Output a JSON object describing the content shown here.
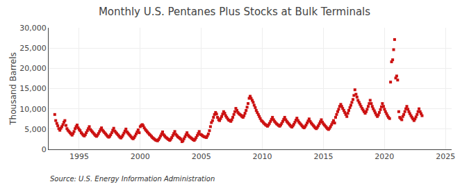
{
  "chart_data": {
    "type": "scatter",
    "title": "Monthly U.S. Pentanes Plus Stocks at Bulk Terminals",
    "ylabel": "Thousand Barrels",
    "annotations": [
      "Source: U.S. Energy Information Administration"
    ],
    "color": "#CC1111",
    "marker": "square",
    "grid": true,
    "xlim": [
      1992.5,
      2025.5
    ],
    "xticks": [
      1995,
      2000,
      2005,
      2010,
      2015,
      2020,
      2025
    ],
    "ylim": [
      0,
      30000
    ],
    "yticks": [
      0,
      {
        "value": 5000,
        "label": "5,000"
      },
      {
        "value": 10000,
        "label": "10,000"
      },
      {
        "value": 15000,
        "label": "15,000"
      },
      {
        "value": 20000,
        "label": "20,000"
      },
      {
        "value": 25000,
        "label": "25,000"
      },
      {
        "value": 30000,
        "label": "30,000"
      }
    ],
    "x": [
      1993.0,
      1993.08,
      1993.17,
      1993.25,
      1993.33,
      1993.42,
      1993.5,
      1993.58,
      1993.67,
      1993.75,
      1993.83,
      1993.92,
      1994.0,
      1994.08,
      1994.17,
      1994.25,
      1994.33,
      1994.42,
      1994.5,
      1994.58,
      1994.67,
      1994.75,
      1994.83,
      1994.92,
      1995.0,
      1995.08,
      1995.17,
      1995.25,
      1995.33,
      1995.42,
      1995.5,
      1995.58,
      1995.67,
      1995.75,
      1995.83,
      1995.92,
      1996.0,
      1996.08,
      1996.17,
      1996.25,
      1996.33,
      1996.42,
      1996.5,
      1996.58,
      1996.67,
      1996.75,
      1996.83,
      1996.92,
      1997.0,
      1997.08,
      1997.17,
      1997.25,
      1997.33,
      1997.42,
      1997.5,
      1997.58,
      1997.67,
      1997.75,
      1997.83,
      1997.92,
      1998.0,
      1998.08,
      1998.17,
      1998.25,
      1998.33,
      1998.42,
      1998.5,
      1998.58,
      1998.67,
      1998.75,
      1998.83,
      1998.92,
      1999.0,
      1999.08,
      1999.17,
      1999.25,
      1999.33,
      1999.42,
      1999.5,
      1999.58,
      1999.67,
      1999.75,
      1999.83,
      1999.92,
      2000.0,
      2000.08,
      2000.17,
      2000.25,
      2000.33,
      2000.42,
      2000.5,
      2000.58,
      2000.67,
      2000.75,
      2000.83,
      2000.92,
      2001.0,
      2001.08,
      2001.17,
      2001.25,
      2001.33,
      2001.42,
      2001.5,
      2001.58,
      2001.67,
      2001.75,
      2001.83,
      2001.92,
      2002.0,
      2002.08,
      2002.17,
      2002.25,
      2002.33,
      2002.42,
      2002.5,
      2002.58,
      2002.67,
      2002.75,
      2002.83,
      2002.92,
      2003.0,
      2003.08,
      2003.17,
      2003.25,
      2003.33,
      2003.42,
      2003.5,
      2003.58,
      2003.67,
      2003.75,
      2003.83,
      2003.92,
      2004.0,
      2004.08,
      2004.17,
      2004.25,
      2004.33,
      2004.42,
      2004.5,
      2004.58,
      2004.67,
      2004.75,
      2004.83,
      2004.92,
      2005.0,
      2005.08,
      2005.17,
      2005.25,
      2005.33,
      2005.42,
      2005.5,
      2005.58,
      2005.67,
      2005.75,
      2005.83,
      2005.92,
      2006.0,
      2006.08,
      2006.17,
      2006.25,
      2006.33,
      2006.42,
      2006.5,
      2006.58,
      2006.67,
      2006.75,
      2006.83,
      2006.92,
      2007.0,
      2007.08,
      2007.17,
      2007.25,
      2007.33,
      2007.42,
      2007.5,
      2007.58,
      2007.67,
      2007.75,
      2007.83,
      2007.92,
      2008.0,
      2008.08,
      2008.17,
      2008.25,
      2008.33,
      2008.42,
      2008.5,
      2008.58,
      2008.67,
      2008.75,
      2008.83,
      2008.92,
      2009.0,
      2009.08,
      2009.17,
      2009.25,
      2009.33,
      2009.42,
      2009.5,
      2009.58,
      2009.67,
      2009.75,
      2009.83,
      2009.92,
      2010.0,
      2010.08,
      2010.17,
      2010.25,
      2010.33,
      2010.42,
      2010.5,
      2010.58,
      2010.67,
      2010.75,
      2010.83,
      2010.92,
      2011.0,
      2011.08,
      2011.17,
      2011.25,
      2011.33,
      2011.42,
      2011.5,
      2011.58,
      2011.67,
      2011.75,
      2011.83,
      2011.92,
      2012.0,
      2012.08,
      2012.17,
      2012.25,
      2012.33,
      2012.42,
      2012.5,
      2012.58,
      2012.67,
      2012.75,
      2012.83,
      2012.92,
      2013.0,
      2013.08,
      2013.17,
      2013.25,
      2013.33,
      2013.42,
      2013.5,
      2013.58,
      2013.67,
      2013.75,
      2013.83,
      2013.92,
      2014.0,
      2014.08,
      2014.17,
      2014.25,
      2014.33,
      2014.42,
      2014.5,
      2014.58,
      2014.67,
      2014.75,
      2014.83,
      2014.92,
      2015.0,
      2015.08,
      2015.17,
      2015.25,
      2015.33,
      2015.42,
      2015.5,
      2015.58,
      2015.67,
      2015.75,
      2015.83,
      2015.92,
      2016.0,
      2016.08,
      2016.17,
      2016.25,
      2016.33,
      2016.42,
      2016.5,
      2016.58,
      2016.67,
      2016.75,
      2016.83,
      2016.92,
      2017.0,
      2017.08,
      2017.17,
      2017.25,
      2017.33,
      2017.42,
      2017.5,
      2017.58,
      2017.67,
      2017.75,
      2017.83,
      2017.92,
      2018.0,
      2018.08,
      2018.17,
      2018.25,
      2018.33,
      2018.42,
      2018.5,
      2018.58,
      2018.67,
      2018.75,
      2018.83,
      2018.92,
      2019.0,
      2019.08,
      2019.17,
      2019.25,
      2019.33,
      2019.42,
      2019.5,
      2019.58,
      2019.67,
      2019.75,
      2019.83,
      2019.92,
      2020.0,
      2020.08,
      2020.17,
      2020.25,
      2020.33,
      2020.42,
      2020.5,
      2020.58,
      2020.67,
      2020.75,
      2020.83,
      2020.92,
      2021.0,
      2021.08,
      2021.17,
      2021.25,
      2021.33,
      2021.42,
      2021.5,
      2021.58,
      2021.67,
      2021.75,
      2021.83,
      2021.92,
      2022.0,
      2022.08,
      2022.17,
      2022.25,
      2022.33,
      2022.42,
      2022.5,
      2022.58,
      2022.67,
      2022.75,
      2022.83,
      2022.92,
      2023.0,
      2023.08
    ],
    "values": [
      8600,
      7100,
      6400,
      5800,
      5100,
      4700,
      5200,
      5600,
      6100,
      6700,
      7100,
      5900,
      5100,
      4700,
      4400,
      4100,
      3800,
      3500,
      3900,
      4400,
      5100,
      5600,
      6000,
      5300,
      4900,
      4600,
      4100,
      3800,
      3500,
      3300,
      3600,
      4100,
      4600,
      5100,
      5600,
      4900,
      4600,
      4300,
      4000,
      3700,
      3400,
      3200,
      3500,
      3900,
      4400,
      4900,
      5300,
      4700,
      4400,
      4100,
      3800,
      3500,
      3200,
      3000,
      3200,
      3600,
      4100,
      4700,
      5200,
      4500,
      4200,
      3900,
      3600,
      3300,
      3000,
      2800,
      3100,
      3500,
      4000,
      4500,
      5000,
      4300,
      4000,
      3700,
      3400,
      3100,
      2800,
      2600,
      2900,
      3300,
      3800,
      4300,
      4800,
      4100,
      5600,
      5900,
      6100,
      5800,
      5300,
      4900,
      4600,
      4300,
      4000,
      3700,
      3500,
      3200,
      2900,
      2700,
      2500,
      2300,
      2200,
      2100,
      2400,
      2800,
      3300,
      3800,
      4300,
      3600,
      3300,
      3000,
      2800,
      2600,
      2400,
      2200,
      2500,
      2900,
      3400,
      3900,
      4400,
      3700,
      3400,
      3100,
      2900,
      2700,
      2500,
      1900,
      2100,
      2600,
      3100,
      3600,
      4100,
      3500,
      3200,
      3000,
      2800,
      2600,
      2400,
      2200,
      2500,
      2900,
      3400,
      3900,
      4400,
      3700,
      3600,
      3400,
      3200,
      3100,
      3000,
      2900,
      3300,
      3800,
      4600,
      5600,
      6600,
      7100,
      7900,
      8600,
      9100,
      8700,
      7900,
      7300,
      7100,
      7600,
      8100,
      8700,
      9300,
      8900,
      8300,
      7900,
      7500,
      7200,
      7100,
      6900,
      7300,
      7900,
      8600,
      9300,
      10100,
      9600,
      9100,
      8800,
      8600,
      8400,
      8100,
      7900,
      8300,
      8900,
      9600,
      10400,
      11300,
      12600,
      13100,
      12600,
      12100,
      11600,
      10900,
      10300,
      9600,
      9100,
      8600,
      8100,
      7600,
      7100,
      6900,
      6600,
      6300,
      6100,
      5900,
      5700,
      6000,
      6400,
      6900,
      7400,
      7900,
      7300,
      6900,
      6600,
      6300,
      6100,
      5900,
      5700,
      6000,
      6400,
      6900,
      7400,
      7900,
      7300,
      6900,
      6600,
      6300,
      6000,
      5700,
      5500,
      5800,
      6200,
      6700,
      7200,
      7700,
      7100,
      6700,
      6400,
      6100,
      5800,
      5500,
      5300,
      5600,
      6000,
      6500,
      7000,
      7500,
      6900,
      6500,
      6200,
      5900,
      5600,
      5300,
      5100,
      5400,
      5800,
      6300,
      6800,
      7300,
      6700,
      6300,
      6000,
      5700,
      5400,
      5100,
      4900,
      5200,
      5600,
      6100,
      6600,
      7100,
      6500,
      7900,
      8600,
      9300,
      9900,
      10600,
      11100,
      10600,
      10100,
      9600,
      9100,
      8600,
      8100,
      8900,
      9600,
      10300,
      10900,
      11600,
      12300,
      13300,
      14700,
      13600,
      12900,
      12100,
      11600,
      11100,
      10600,
      10100,
      9700,
      9300,
      8900,
      9300,
      9900,
      10600,
      11300,
      12100,
      11300,
      10600,
      10000,
      9500,
      9000,
      8500,
      8100,
      8500,
      9100,
      9800,
      10500,
      11300,
      10600,
      9900,
      9300,
      8800,
      8300,
      7900,
      7600,
      16600,
      21600,
      22100,
      24600,
      27100,
      17600,
      18100,
      17100,
      9300,
      7900,
      7600,
      7300,
      8100,
      8600,
      9300,
      10000,
      10600,
      9900,
      9300,
      8800,
      8300,
      7900,
      7500,
      7100,
      7500,
      8000,
      8600,
      9300,
      10000,
      9300,
      8800,
      8300
    ]
  }
}
